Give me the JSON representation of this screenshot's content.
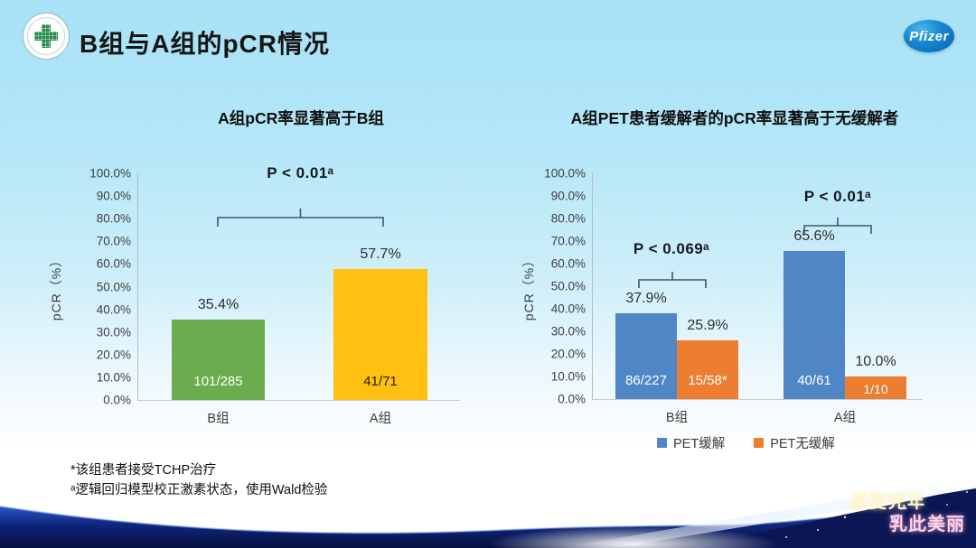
{
  "slide": {
    "title": "B组与A组的pCR情况",
    "pfizer_label": "Pfizer",
    "hospital_logo": "green-cross-hospital-emblem"
  },
  "chart_data": [
    {
      "type": "bar",
      "title": "A组pCR率显著高于B组",
      "xlabel": "",
      "ylabel": "pCR（%）",
      "ylim": [
        0,
        100
      ],
      "grid": false,
      "legend_position": "none",
      "yticks": [
        "100.0%",
        "90.0%",
        "80.0%",
        "70.0%",
        "60.0%",
        "50.0%",
        "40.0%",
        "30.0%",
        "20.0%",
        "10.0%",
        "0.0%"
      ],
      "categories": [
        "B组",
        "A组"
      ],
      "values": [
        35.4,
        57.7
      ],
      "bars": [
        {
          "category": "B组",
          "value": 35.4,
          "value_label": "35.4%",
          "count_label": "101/285",
          "color": "#6BAC4E"
        },
        {
          "category": "A组",
          "value": 57.7,
          "value_label": "57.7%",
          "count_label": "41/71",
          "color": "#FFC011"
        }
      ],
      "significance": {
        "label": "P < 0.01ᵃ",
        "between": [
          "B组",
          "A组"
        ]
      }
    },
    {
      "type": "bar",
      "title": "A组PET患者缓解者的pCR率显著高于无缓解者",
      "xlabel": "",
      "ylabel": "pCR（%）",
      "ylim": [
        0,
        100
      ],
      "grid": false,
      "legend_position": "bottom",
      "yticks": [
        "100.0%",
        "90.0%",
        "80.0%",
        "70.0%",
        "60.0%",
        "50.0%",
        "40.0%",
        "30.0%",
        "20.0%",
        "10.0%",
        "0.0%"
      ],
      "categories": [
        "B组",
        "A组"
      ],
      "series": [
        {
          "name": "PET缓解",
          "color": "#4E86C6",
          "values": [
            37.9,
            65.6
          ]
        },
        {
          "name": "PET无缓解",
          "color": "#ED7D31",
          "values": [
            25.9,
            10.0
          ]
        }
      ],
      "bars": [
        {
          "category": "B组",
          "series": "PET缓解",
          "value": 37.9,
          "value_label": "37.9%",
          "count_label": "86/227",
          "color": "#4E86C6"
        },
        {
          "category": "B组",
          "series": "PET无缓解",
          "value": 25.9,
          "value_label": "25.9%",
          "count_label": "15/58*",
          "color": "#ED7D31"
        },
        {
          "category": "A组",
          "series": "PET缓解",
          "value": 65.6,
          "value_label": "65.6%",
          "count_label": "40/61",
          "color": "#4E86C6"
        },
        {
          "category": "A组",
          "series": "PET无缓解",
          "value": 10.0,
          "value_label": "10.0%",
          "count_label": "1/10",
          "color": "#ED7D31"
        }
      ],
      "significance": [
        {
          "group": "B组",
          "label": "P < 0.069ᵃ"
        },
        {
          "group": "A组",
          "label": "P < 0.01ᵃ"
        }
      ]
    }
  ],
  "footnotes": {
    "line1": "*该组患者接受TCHP治疗",
    "line2": "ᵃ逻辑回归模型校正激素状态，使用Wald检验"
  },
  "banner": {
    "line1": "盛夏光年",
    "line2": "乳此美丽"
  },
  "colors": {
    "background_top": "#ADE3F6",
    "bar_green": "#6BAC4E",
    "bar_yellow": "#FFC011",
    "bar_blue": "#4E86C6",
    "bar_orange": "#ED7D31",
    "banner_navy": "#0B1654",
    "pfizer_blue": "#1584CF"
  }
}
